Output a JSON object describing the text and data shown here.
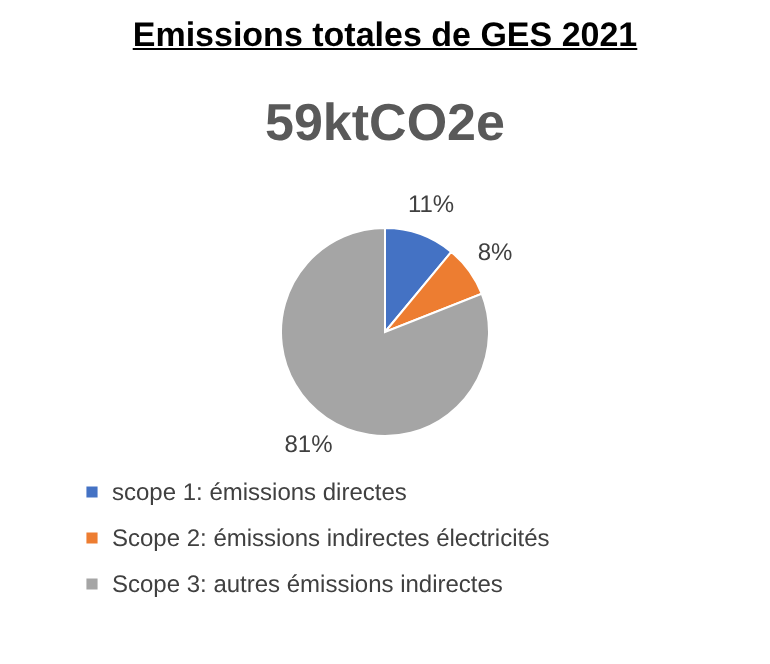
{
  "chart_data": {
    "type": "pie",
    "title": "Emissions totales de GES 2021",
    "subtitle": "59ktCO2e",
    "categories": [
      "scope 1: émissions directes",
      "Scope 2: émissions indirectes électricités",
      "Scope 3: autres émissions indirectes"
    ],
    "values": [
      11,
      8,
      81
    ],
    "colors": [
      "#4472c4",
      "#ed7d31",
      "#a5a5a5"
    ],
    "value_labels": [
      "11%",
      "8%",
      "81%"
    ],
    "legend": "bottom"
  }
}
